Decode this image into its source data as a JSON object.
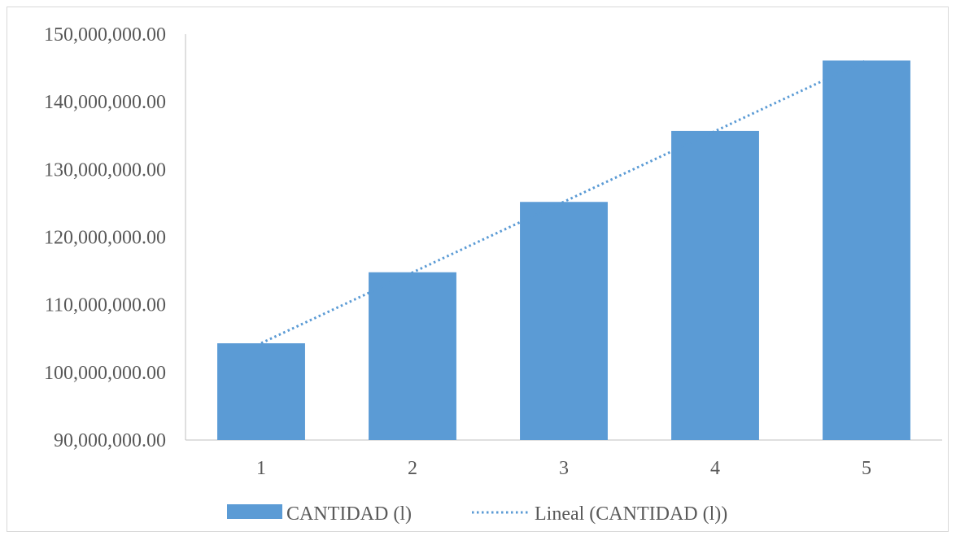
{
  "chart_data": {
    "type": "bar",
    "categories": [
      "1",
      "2",
      "3",
      "4",
      "5"
    ],
    "series": [
      {
        "name": "CANTIDAD (l)",
        "values": [
          104300000,
          114800000,
          125200000,
          135700000,
          146100000
        ],
        "color": "#5b9bd5"
      }
    ],
    "trendline": {
      "name": "Lineal (CANTIDAD (l))",
      "type": "linear",
      "style": "dotted",
      "color": "#5b9bd5"
    },
    "y_ticks": [
      "90,000,000.00",
      "100,000,000.00",
      "110,000,000.00",
      "120,000,000.00",
      "130,000,000.00",
      "140,000,000.00",
      "150,000,000.00"
    ],
    "ylim": [
      90000000,
      150000000
    ],
    "grid": false,
    "legend": {
      "position": "bottom",
      "bar_label": "CANTIDAD (l)",
      "trend_label": "Lineal (CANTIDAD (l))"
    }
  }
}
